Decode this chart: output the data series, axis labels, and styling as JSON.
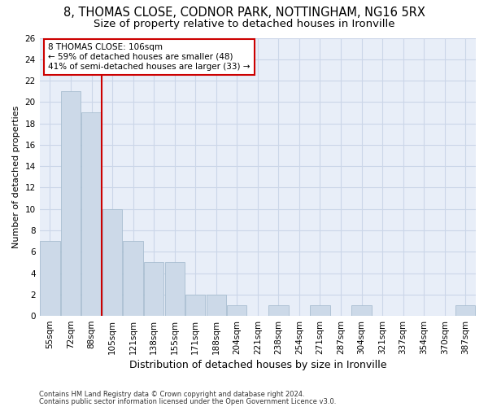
{
  "title1": "8, THOMAS CLOSE, CODNOR PARK, NOTTINGHAM, NG16 5RX",
  "title2": "Size of property relative to detached houses in Ironville",
  "xlabel": "Distribution of detached houses by size in Ironville",
  "ylabel": "Number of detached properties",
  "footer1": "Contains HM Land Registry data © Crown copyright and database right 2024.",
  "footer2": "Contains public sector information licensed under the Open Government Licence v3.0.",
  "bin_labels": [
    "55sqm",
    "72sqm",
    "88sqm",
    "105sqm",
    "121sqm",
    "138sqm",
    "155sqm",
    "171sqm",
    "188sqm",
    "204sqm",
    "221sqm",
    "238sqm",
    "254sqm",
    "271sqm",
    "287sqm",
    "304sqm",
    "321sqm",
    "337sqm",
    "354sqm",
    "370sqm",
    "387sqm"
  ],
  "bar_values": [
    7,
    21,
    19,
    10,
    7,
    5,
    5,
    2,
    2,
    1,
    0,
    1,
    0,
    1,
    0,
    1,
    0,
    0,
    0,
    0,
    1
  ],
  "bar_color": "#ccd9e8",
  "bar_edge_color": "#a8bdd0",
  "vline_color": "#cc0000",
  "annotation_text": "8 THOMAS CLOSE: 106sqm\n← 59% of detached houses are smaller (48)\n41% of semi-detached houses are larger (33) →",
  "annotation_box_color": "#ffffff",
  "annotation_box_edge": "#cc0000",
  "ylim": [
    0,
    26
  ],
  "yticks": [
    0,
    2,
    4,
    6,
    8,
    10,
    12,
    14,
    16,
    18,
    20,
    22,
    24,
    26
  ],
  "grid_color": "#cbd6e8",
  "background_color": "#e8eef8",
  "title1_fontsize": 10.5,
  "title2_fontsize": 9.5,
  "xlabel_fontsize": 9,
  "ylabel_fontsize": 8,
  "tick_fontsize": 7.5,
  "annotation_fontsize": 7.5,
  "footer_fontsize": 6
}
